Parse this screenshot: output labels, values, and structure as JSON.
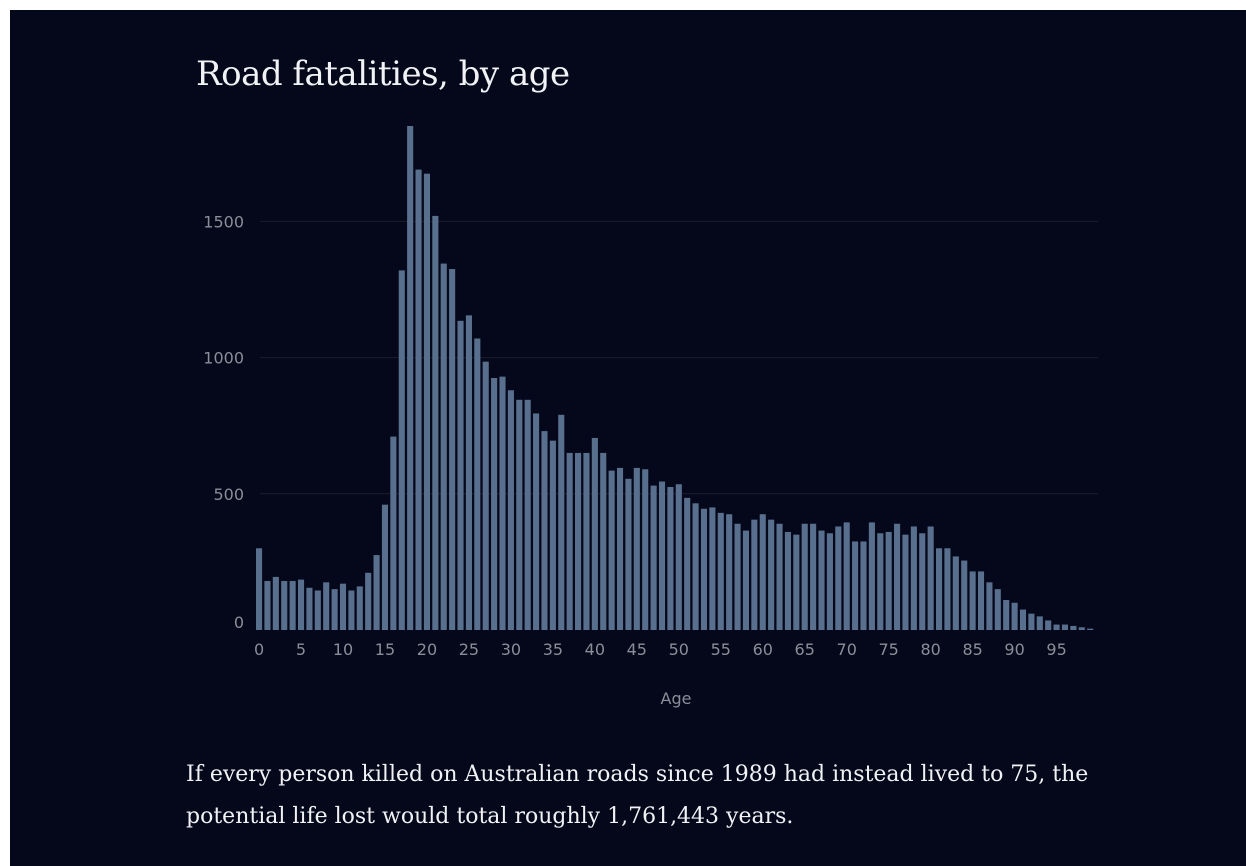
{
  "colors": {
    "background": "#05071a",
    "bar": "#58708e",
    "text": "#f1f2f5",
    "axis_text": "#8b8e98",
    "gridline": "#1b1e2e"
  },
  "caption": "If every person killed on Australian roads since 1989 had instead lived to 75, the potential life lost would total roughly 1,761,443 years.",
  "chart_data": {
    "type": "bar",
    "title": "Road fatalities, by age",
    "xlabel": "Age",
    "ylabel": "",
    "grid": true,
    "ylim": [
      0,
      1850
    ],
    "x": [
      0,
      1,
      2,
      3,
      4,
      5,
      6,
      7,
      8,
      9,
      10,
      11,
      12,
      13,
      14,
      15,
      16,
      17,
      18,
      19,
      20,
      21,
      22,
      23,
      24,
      25,
      26,
      27,
      28,
      29,
      30,
      31,
      32,
      33,
      34,
      35,
      36,
      37,
      38,
      39,
      40,
      41,
      42,
      43,
      44,
      45,
      46,
      47,
      48,
      49,
      50,
      51,
      52,
      53,
      54,
      55,
      56,
      57,
      58,
      59,
      60,
      61,
      62,
      63,
      64,
      65,
      66,
      67,
      68,
      69,
      70,
      71,
      72,
      73,
      74,
      75,
      76,
      77,
      78,
      79,
      80,
      81,
      82,
      83,
      84,
      85,
      86,
      87,
      88,
      89,
      90,
      91,
      92,
      93,
      94,
      95,
      96,
      97,
      98,
      99
    ],
    "values": [
      300,
      180,
      195,
      180,
      180,
      185,
      155,
      145,
      175,
      150,
      170,
      145,
      160,
      210,
      275,
      460,
      710,
      1320,
      1850,
      1690,
      1675,
      1520,
      1345,
      1325,
      1135,
      1155,
      1070,
      985,
      925,
      930,
      880,
      845,
      845,
      795,
      730,
      695,
      790,
      650,
      650,
      650,
      705,
      650,
      585,
      595,
      555,
      595,
      590,
      530,
      545,
      525,
      535,
      485,
      465,
      445,
      450,
      430,
      425,
      390,
      365,
      405,
      425,
      405,
      390,
      360,
      350,
      390,
      390,
      365,
      355,
      380,
      395,
      325,
      325,
      395,
      355,
      360,
      390,
      350,
      380,
      355,
      380,
      300,
      300,
      270,
      255,
      215,
      215,
      175,
      150,
      110,
      100,
      75,
      60,
      50,
      35,
      20,
      20,
      15,
      10,
      5
    ],
    "x_ticks": [
      0,
      5,
      10,
      15,
      20,
      25,
      30,
      35,
      40,
      45,
      50,
      55,
      60,
      65,
      70,
      75,
      80,
      85,
      90,
      95
    ],
    "y_ticks": [
      0,
      500,
      1000,
      1500
    ]
  }
}
